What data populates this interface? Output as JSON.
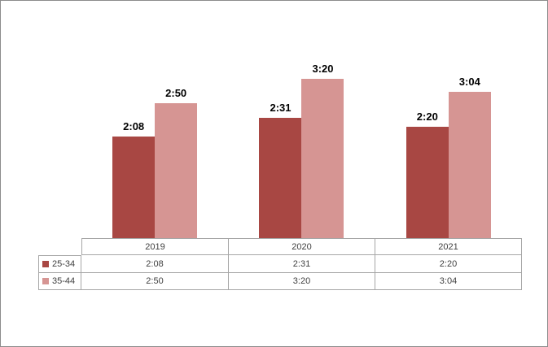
{
  "chart_data": {
    "type": "bar",
    "title": "",
    "categories": [
      "2019",
      "2020",
      "2021"
    ],
    "series": [
      {
        "name": "25-34",
        "color": "#a84743",
        "values_minutes": [
          128,
          151,
          140
        ],
        "labels": [
          "2:08",
          "2:31",
          "2:20"
        ]
      },
      {
        "name": "35-44",
        "color": "#d69593",
        "values_minutes": [
          170,
          200,
          184
        ],
        "labels": [
          "2:50",
          "3:20",
          "3:04"
        ]
      }
    ],
    "value_format": "h:mm",
    "data_labels_shown": true,
    "axes_visible": false,
    "gridlines": false,
    "legend_position": "data-table-left-keys",
    "ylim_minutes": [
      0,
      266
    ]
  },
  "table": {
    "header": [
      "2019",
      "2020",
      "2021"
    ],
    "rows": [
      {
        "legend": "25-34",
        "cells": [
          "2:08",
          "2:31",
          "2:20"
        ]
      },
      {
        "legend": "35-44",
        "cells": [
          "2:50",
          "3:20",
          "3:04"
        ]
      }
    ]
  },
  "colors": {
    "series_dark_red": "#a84743",
    "series_light_pink": "#d69593",
    "frame_border": "#8c8c8c",
    "table_border": "#a6a6a6",
    "table_text": "#404040",
    "data_label_text": "#000000"
  }
}
